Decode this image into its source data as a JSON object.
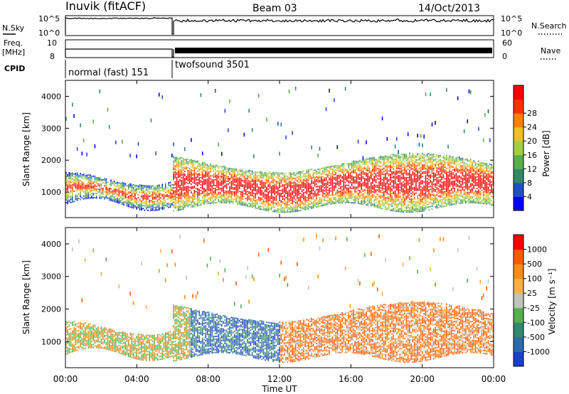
{
  "header": {
    "station": "Inuvik (fitACF)",
    "beam": "Beam 03",
    "date": "14/Oct/2013"
  },
  "status_panel": {
    "nsky_label": "N.Sky",
    "nsky_ticks": [
      "10^5",
      "10^0"
    ],
    "nsearch_label": "N.Search",
    "freq_label_1": "Freq.",
    "freq_label_2": "[MHz]",
    "freq_ticks": [
      "10",
      "8"
    ],
    "nave_label": "Nave",
    "nave_ticks": [
      "60",
      "0"
    ],
    "cpid_label": "CPID",
    "modes": [
      {
        "name": "normal (fast) 151",
        "start_hour": 0,
        "end_hour": 6
      },
      {
        "name": "twofsound 3501",
        "start_hour": 6,
        "end_hour": 24
      }
    ]
  },
  "chart_data": [
    {
      "type": "heatmap",
      "title": "",
      "xlabel": "Time UT",
      "ylabel": "Slant Range [km]",
      "x_ticks": [
        "00:00",
        "04:00",
        "08:00",
        "12:00",
        "16:00",
        "20:00",
        "00:00"
      ],
      "xlim": [
        0,
        24
      ],
      "y_ticks": [
        "1000",
        "2000",
        "3000",
        "4000"
      ],
      "ylim": [
        200,
        4500
      ],
      "colorbar": {
        "label": "Power [dB]",
        "ticks": [
          "4",
          "8",
          "12",
          "16",
          "20",
          "24",
          "28"
        ],
        "colors": [
          "#0000ff",
          "#2050c8",
          "#308a6a",
          "#58b048",
          "#a0d040",
          "#f0c020",
          "#ff8000",
          "#ff3000",
          "#ff0000"
        ]
      }
    },
    {
      "type": "heatmap",
      "title": "",
      "xlabel": "Time UT",
      "ylabel": "Slant Range [km]",
      "x_ticks": [
        "00:00",
        "04:00",
        "08:00",
        "12:00",
        "16:00",
        "20:00",
        "00:00"
      ],
      "xlim": [
        0,
        24
      ],
      "y_ticks": [
        "1000",
        "2000",
        "3000",
        "4000"
      ],
      "ylim": [
        200,
        4500
      ],
      "colorbar": {
        "label": "Velocity [m s⁻¹]",
        "ticks": [
          "1000",
          "500",
          "100",
          "25",
          "-25",
          "-100",
          "-500",
          "-1000"
        ],
        "colors": [
          "#1a3fd0",
          "#2a6ab0",
          "#2f8a70",
          "#54b050",
          "#c0c4b8",
          "#ffb040",
          "#ff8c10",
          "#ff5a00",
          "#ff0000"
        ]
      }
    }
  ]
}
